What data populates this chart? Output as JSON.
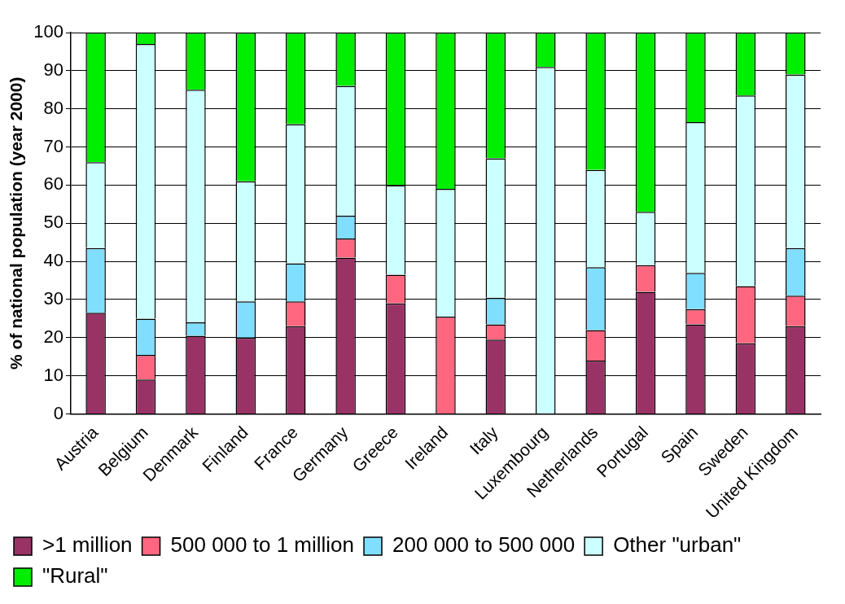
{
  "chart_data": {
    "type": "bar",
    "stacked": true,
    "ylabel": "% of national population (year 2000)",
    "categories": [
      "Austria",
      "Belgium",
      "Denmark",
      "Finland",
      "France",
      "Germany",
      "Greece",
      "Ireland",
      "Italy",
      "Luxembourg",
      "Netherlands",
      "Portugal",
      "Spain",
      "Sweden",
      "United Kingdom"
    ],
    "series": [
      {
        "name": ">1 million",
        "color": "#993366",
        "values": [
          26.5,
          9,
          20.5,
          20,
          23,
          41,
          29,
          0,
          19.5,
          0,
          14,
          32,
          23.5,
          18.5,
          23
        ]
      },
      {
        "name": "500 000 to 1 million",
        "color": "#ff6680",
        "values": [
          0,
          6.5,
          0,
          0,
          6.5,
          5,
          7.5,
          25.5,
          4,
          0,
          8,
          7,
          4,
          15,
          8
        ]
      },
      {
        "name": "200 000 to 500 000",
        "color": "#80deff",
        "values": [
          17,
          9.5,
          3.5,
          9.5,
          10,
          6,
          0,
          0,
          7,
          0,
          16.5,
          0,
          9.5,
          0,
          12.5
        ]
      },
      {
        "name": "Other \"urban\"",
        "color": "#ccffff",
        "values": [
          22.5,
          72,
          61,
          31.5,
          36.5,
          34,
          23.5,
          33.5,
          36.5,
          91,
          25.5,
          14,
          39.5,
          50,
          45.5
        ]
      },
      {
        "name": "\"Rural\"",
        "color": "#00ee00",
        "values": [
          34,
          3,
          15,
          39,
          24,
          14,
          40,
          41,
          33,
          9,
          36,
          47,
          23.5,
          16.5,
          11
        ]
      }
    ],
    "ylim": [
      0,
      100
    ],
    "yticks": [
      0,
      10,
      20,
      30,
      40,
      50,
      60,
      70,
      80,
      90,
      100
    ],
    "grid": "y",
    "legend": "bottom"
  }
}
